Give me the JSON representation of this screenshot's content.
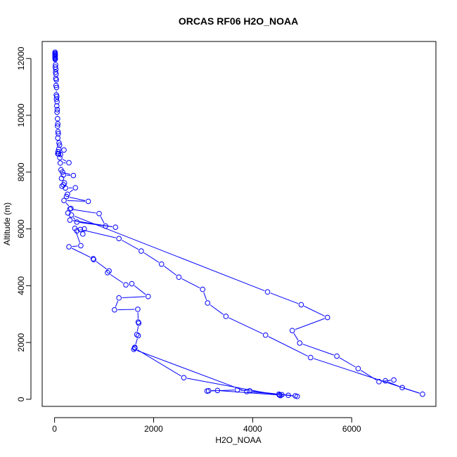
{
  "chart_data": {
    "type": "line",
    "title": "ORCAS RF06 H2O_NOAA",
    "xlabel": "H2O_NOAA",
    "ylabel": "Altitude (m)",
    "xlim": [
      -250,
      7700
    ],
    "ylim": [
      -250,
      12600
    ],
    "xticks": [
      0,
      2000,
      4000,
      6000
    ],
    "yticks": [
      0,
      2000,
      4000,
      6000,
      8000,
      10000,
      12000
    ],
    "grid": false,
    "legend": "none",
    "color": "#0000ff",
    "marker": "open-circle",
    "series": [
      {
        "points": [
          [
            10,
            12220
          ],
          [
            12,
            12180
          ],
          [
            10,
            12150
          ],
          [
            14,
            12120
          ],
          [
            10,
            12090
          ],
          [
            12,
            12060
          ],
          [
            10,
            12030
          ],
          [
            14,
            12000
          ],
          [
            12,
            11970
          ],
          [
            20,
            11780
          ],
          [
            15,
            11700
          ],
          [
            25,
            11620
          ],
          [
            20,
            11520
          ],
          [
            30,
            11450
          ],
          [
            25,
            11300
          ],
          [
            35,
            11250
          ],
          [
            30,
            11050
          ],
          [
            40,
            10980
          ],
          [
            35,
            10720
          ],
          [
            45,
            10660
          ],
          [
            38,
            10570
          ],
          [
            50,
            10480
          ],
          [
            45,
            10330
          ],
          [
            55,
            10200
          ],
          [
            50,
            10110
          ],
          [
            60,
            9880
          ],
          [
            65,
            9700
          ],
          [
            60,
            9620
          ],
          [
            70,
            9420
          ],
          [
            75,
            9350
          ],
          [
            65,
            9200
          ],
          [
            90,
            9030
          ],
          [
            100,
            8950
          ],
          [
            85,
            8810
          ],
          [
            70,
            8720
          ],
          [
            65,
            8650
          ],
          [
            80,
            8640
          ],
          [
            190,
            8780
          ],
          [
            120,
            8620
          ],
          [
            105,
            8510
          ],
          [
            290,
            8330
          ],
          [
            115,
            8320
          ],
          [
            130,
            8080
          ],
          [
            160,
            8000
          ],
          [
            380,
            7880
          ],
          [
            180,
            7900
          ],
          [
            140,
            7780
          ],
          [
            200,
            7620
          ],
          [
            180,
            7550
          ],
          [
            150,
            7500
          ],
          [
            220,
            7440
          ],
          [
            420,
            7450
          ],
          [
            260,
            7220
          ],
          [
            240,
            7140
          ],
          [
            680,
            6970
          ],
          [
            190,
            7000
          ],
          [
            330,
            6720
          ],
          [
            270,
            6560
          ],
          [
            310,
            6700
          ],
          [
            900,
            6540
          ],
          [
            1030,
            6100
          ],
          [
            310,
            6310
          ],
          [
            1230,
            6060
          ],
          [
            450,
            6240
          ],
          [
            340,
            6490
          ],
          [
            4300,
            3780
          ],
          [
            4980,
            3330
          ],
          [
            5510,
            2880
          ],
          [
            4800,
            2420
          ],
          [
            4950,
            1980
          ],
          [
            5700,
            1520
          ],
          [
            6130,
            1080
          ],
          [
            6550,
            620
          ],
          [
            6850,
            680
          ],
          [
            6680,
            650
          ],
          [
            7020,
            410
          ],
          [
            7430,
            180
          ],
          [
            5170,
            1470
          ],
          [
            4260,
            2260
          ],
          [
            3460,
            2920
          ],
          [
            3090,
            3390
          ],
          [
            2990,
            3870
          ],
          [
            2510,
            4300
          ],
          [
            2160,
            4760
          ],
          [
            1750,
            5220
          ],
          [
            1300,
            5660
          ],
          [
            520,
            5980
          ],
          [
            570,
            5820
          ],
          [
            600,
            6000
          ],
          [
            450,
            5930
          ],
          [
            410,
            6020
          ],
          [
            530,
            5410
          ],
          [
            290,
            5370
          ],
          [
            780,
            4950
          ],
          [
            790,
            4920
          ],
          [
            1100,
            4520
          ],
          [
            1070,
            4460
          ],
          [
            1440,
            4030
          ],
          [
            1560,
            4070
          ],
          [
            1890,
            3620
          ],
          [
            1300,
            3570
          ],
          [
            1210,
            3150
          ],
          [
            1680,
            3170
          ],
          [
            1690,
            2720
          ],
          [
            1700,
            2680
          ],
          [
            1660,
            2280
          ],
          [
            1690,
            2240
          ],
          [
            1620,
            1830
          ],
          [
            1600,
            1760
          ],
          [
            3880,
            270
          ],
          [
            4530,
            180
          ],
          [
            4860,
            120
          ],
          [
            4900,
            100
          ],
          [
            4590,
            160
          ],
          [
            4720,
            140
          ],
          [
            3940,
            300
          ],
          [
            3690,
            330
          ],
          [
            3080,
            290
          ],
          [
            3110,
            300
          ],
          [
            3290,
            310
          ],
          [
            4540,
            150
          ],
          [
            4560,
            130
          ],
          [
            2610,
            760
          ],
          [
            1620,
            1800
          ]
        ]
      }
    ]
  }
}
